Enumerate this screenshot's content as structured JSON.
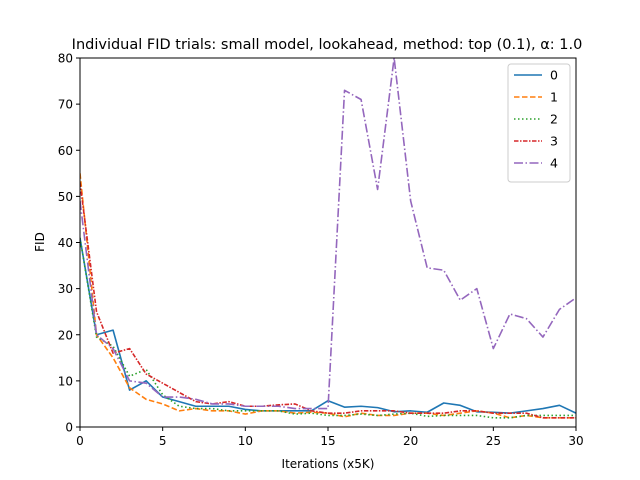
{
  "chart_data": {
    "type": "line",
    "title": "Individual FID trials: small model, lookahead, method: top (0.1), α: 1.0",
    "xlabel": "Iterations (x5K)",
    "ylabel": "FID",
    "xlim": [
      0,
      30
    ],
    "ylim": [
      0,
      80
    ],
    "xticks": [
      0,
      5,
      10,
      15,
      20,
      25,
      30
    ],
    "yticks": [
      0,
      10,
      20,
      30,
      40,
      50,
      60,
      70,
      80
    ],
    "grid": false,
    "legend_position": "top-right",
    "x": [
      0,
      1,
      2,
      3,
      4,
      5,
      6,
      7,
      8,
      9,
      10,
      11,
      12,
      13,
      14,
      15,
      16,
      17,
      18,
      19,
      20,
      21,
      22,
      23,
      24,
      25,
      26,
      27,
      28,
      29,
      30
    ],
    "series": [
      {
        "name": "0",
        "color": "#1f77b4",
        "dash": "solid",
        "values": [
          41,
          20,
          21,
          8,
          10,
          6.5,
          5.5,
          4.5,
          4.5,
          4.5,
          3.8,
          3.5,
          3.5,
          3.5,
          3.5,
          5.7,
          4.3,
          4.5,
          4.2,
          3.3,
          3.5,
          3.2,
          5.2,
          4.7,
          3.3,
          3.2,
          3,
          3.5,
          4,
          4.7,
          3
        ]
      },
      {
        "name": "1",
        "color": "#ff7f0e",
        "dash": "dashed",
        "values": [
          55,
          20,
          15,
          8.5,
          6,
          5,
          3.5,
          4,
          3.5,
          3.5,
          2.8,
          3.5,
          3.5,
          3,
          3.2,
          3,
          2.2,
          3,
          2.5,
          2.5,
          3,
          3,
          2.5,
          3,
          3.5,
          3,
          2,
          2.5,
          2,
          2,
          2
        ]
      },
      {
        "name": "2",
        "color": "#2ca02c",
        "dash": "dotted",
        "values": [
          41,
          19.5,
          17.5,
          11,
          12.5,
          7,
          4.5,
          4,
          4,
          3.5,
          3.5,
          3.5,
          3.5,
          2.8,
          3,
          2.5,
          2.5,
          2.8,
          2.5,
          2.8,
          3,
          2.3,
          2.5,
          2.5,
          2.5,
          2,
          2,
          2.5,
          2.5,
          2.5,
          2.5
        ]
      },
      {
        "name": "3",
        "color": "#d62728",
        "dash": "dashdot-red",
        "values": [
          53,
          25,
          16,
          17,
          11.5,
          9.5,
          7.5,
          5.5,
          5,
          5.5,
          4.5,
          4.5,
          4.8,
          5,
          3.5,
          3,
          3,
          3.5,
          3.5,
          3.5,
          3,
          3,
          3,
          3.5,
          3.5,
          3,
          3,
          3,
          2,
          2,
          2
        ]
      },
      {
        "name": "4",
        "color": "#9467bd",
        "dash": "dashdot",
        "values": [
          49,
          20,
          17,
          10,
          9.5,
          6.5,
          6.5,
          6,
          5,
          5,
          4.5,
          4.5,
          4.5,
          4,
          4,
          4,
          73,
          71,
          51.5,
          80,
          49,
          34.5,
          34,
          27.5,
          30,
          17,
          24.5,
          23.5,
          19.5,
          25.5,
          28
        ]
      }
    ]
  }
}
